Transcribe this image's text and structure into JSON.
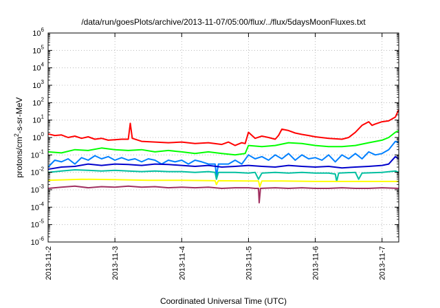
{
  "chart_data": {
    "type": "line",
    "title": "/data/run/goesPlots/archive/2013-11-07/05:00/flux/../flux/5daysMoonFluxes.txt",
    "xlabel": "Coordinated Universal Time (UTC)",
    "ylabel": {
      "prefix": "protons/cm",
      "sup": "2",
      "suffix": "-s-sr-MeV"
    },
    "yscale": "log",
    "ylim_exp": [
      -6,
      6
    ],
    "y_tick_labels": [
      {
        "base": "10",
        "exp": "-6"
      },
      {
        "base": "10",
        "exp": "-5"
      },
      {
        "base": "10",
        "exp": "-4"
      },
      {
        "base": "10",
        "exp": "-3"
      },
      {
        "base": "10",
        "exp": "-2"
      },
      {
        "base": "10",
        "exp": "-1"
      },
      {
        "base": "10",
        "exp": "0"
      },
      {
        "base": "10",
        "exp": "1"
      },
      {
        "base": "10",
        "exp": "2"
      },
      {
        "base": "10",
        "exp": "3"
      },
      {
        "base": "10",
        "exp": "4"
      },
      {
        "base": "10",
        "exp": "5"
      },
      {
        "base": "10",
        "exp": "6"
      }
    ],
    "xlim_days": [
      0,
      5.25
    ],
    "x_tick_labels": [
      "2013-11-2",
      "2013-11-3",
      "2013-11-4",
      "2013-11-5",
      "2013-11-6",
      "2013-11-7"
    ],
    "grid": true,
    "series": [
      {
        "color": "#ff0000",
        "points": [
          [
            0,
            1.6
          ],
          [
            0.1,
            1.3
          ],
          [
            0.2,
            1.4
          ],
          [
            0.3,
            1.0
          ],
          [
            0.4,
            1.2
          ],
          [
            0.5,
            0.9
          ],
          [
            0.6,
            1.1
          ],
          [
            0.7,
            0.8
          ],
          [
            0.8,
            0.9
          ],
          [
            0.9,
            0.7
          ],
          [
            1.0,
            0.75
          ],
          [
            1.1,
            0.8
          ],
          [
            1.2,
            0.8
          ],
          [
            1.23,
            6.5
          ],
          [
            1.26,
            0.9
          ],
          [
            1.4,
            0.6
          ],
          [
            1.6,
            0.55
          ],
          [
            1.8,
            0.5
          ],
          [
            2.0,
            0.55
          ],
          [
            2.2,
            0.45
          ],
          [
            2.4,
            0.5
          ],
          [
            2.6,
            0.4
          ],
          [
            2.7,
            0.55
          ],
          [
            2.8,
            0.35
          ],
          [
            2.9,
            0.5
          ],
          [
            2.95,
            0.45
          ],
          [
            3.0,
            2.0
          ],
          [
            3.1,
            0.9
          ],
          [
            3.2,
            1.2
          ],
          [
            3.3,
            1.0
          ],
          [
            3.4,
            0.8
          ],
          [
            3.45,
            1.3
          ],
          [
            3.5,
            3.0
          ],
          [
            3.6,
            2.5
          ],
          [
            3.7,
            1.8
          ],
          [
            3.8,
            1.5
          ],
          [
            3.9,
            1.3
          ],
          [
            4.0,
            1.1
          ],
          [
            4.2,
            0.9
          ],
          [
            4.4,
            0.8
          ],
          [
            4.5,
            1.0
          ],
          [
            4.6,
            2.0
          ],
          [
            4.7,
            5.0
          ],
          [
            4.8,
            8.0
          ],
          [
            4.85,
            5.0
          ],
          [
            4.9,
            6.0
          ],
          [
            5.0,
            8.0
          ],
          [
            5.1,
            9.0
          ],
          [
            5.2,
            15
          ],
          [
            5.25,
            40
          ]
        ]
      },
      {
        "color": "#00ff00",
        "points": [
          [
            0,
            0.15
          ],
          [
            0.2,
            0.13
          ],
          [
            0.4,
            0.2
          ],
          [
            0.6,
            0.18
          ],
          [
            0.8,
            0.25
          ],
          [
            1.0,
            0.2
          ],
          [
            1.2,
            0.18
          ],
          [
            1.4,
            0.2
          ],
          [
            1.6,
            0.15
          ],
          [
            1.8,
            0.18
          ],
          [
            2.0,
            0.15
          ],
          [
            2.2,
            0.12
          ],
          [
            2.4,
            0.15
          ],
          [
            2.6,
            0.12
          ],
          [
            2.8,
            0.1
          ],
          [
            2.95,
            0.12
          ],
          [
            3.0,
            0.35
          ],
          [
            3.2,
            0.3
          ],
          [
            3.4,
            0.35
          ],
          [
            3.6,
            0.5
          ],
          [
            3.8,
            0.45
          ],
          [
            4.0,
            0.35
          ],
          [
            4.2,
            0.3
          ],
          [
            4.4,
            0.3
          ],
          [
            4.6,
            0.35
          ],
          [
            4.8,
            0.5
          ],
          [
            5.0,
            0.7
          ],
          [
            5.1,
            1.0
          ],
          [
            5.2,
            2.0
          ],
          [
            5.25,
            2.5
          ]
        ]
      },
      {
        "color": "#0080ff",
        "points": [
          [
            0,
            0.02
          ],
          [
            0.1,
            0.05
          ],
          [
            0.2,
            0.04
          ],
          [
            0.3,
            0.06
          ],
          [
            0.4,
            0.03
          ],
          [
            0.5,
            0.07
          ],
          [
            0.6,
            0.05
          ],
          [
            0.7,
            0.09
          ],
          [
            0.8,
            0.06
          ],
          [
            0.9,
            0.08
          ],
          [
            1.0,
            0.05
          ],
          [
            1.1,
            0.07
          ],
          [
            1.2,
            0.05
          ],
          [
            1.3,
            0.06
          ],
          [
            1.4,
            0.04
          ],
          [
            1.5,
            0.06
          ],
          [
            1.6,
            0.05
          ],
          [
            1.7,
            0.03
          ],
          [
            1.8,
            0.05
          ],
          [
            1.9,
            0.04
          ],
          [
            2.0,
            0.05
          ],
          [
            2.1,
            0.03
          ],
          [
            2.2,
            0.05
          ],
          [
            2.3,
            0.04
          ],
          [
            2.4,
            0.03
          ],
          [
            2.5,
            0.03
          ],
          [
            2.52,
            0.006
          ],
          [
            2.55,
            0.03
          ],
          [
            2.7,
            0.03
          ],
          [
            2.8,
            0.05
          ],
          [
            2.9,
            0.03
          ],
          [
            3.0,
            0.1
          ],
          [
            3.1,
            0.06
          ],
          [
            3.2,
            0.08
          ],
          [
            3.3,
            0.05
          ],
          [
            3.4,
            0.1
          ],
          [
            3.5,
            0.06
          ],
          [
            3.6,
            0.12
          ],
          [
            3.7,
            0.05
          ],
          [
            3.8,
            0.1
          ],
          [
            3.9,
            0.06
          ],
          [
            4.0,
            0.07
          ],
          [
            4.1,
            0.05
          ],
          [
            4.2,
            0.1
          ],
          [
            4.3,
            0.04
          ],
          [
            4.4,
            0.1
          ],
          [
            4.5,
            0.06
          ],
          [
            4.6,
            0.12
          ],
          [
            4.7,
            0.06
          ],
          [
            4.8,
            0.15
          ],
          [
            4.9,
            0.1
          ],
          [
            5.0,
            0.12
          ],
          [
            5.1,
            0.2
          ],
          [
            5.2,
            0.6
          ],
          [
            5.25,
            0.5
          ]
        ]
      },
      {
        "color": "#0000cc",
        "points": [
          [
            0,
            0.015
          ],
          [
            0.2,
            0.02
          ],
          [
            0.4,
            0.022
          ],
          [
            0.6,
            0.03
          ],
          [
            0.8,
            0.025
          ],
          [
            1.0,
            0.03
          ],
          [
            1.2,
            0.028
          ],
          [
            1.4,
            0.025
          ],
          [
            1.6,
            0.03
          ],
          [
            1.8,
            0.028
          ],
          [
            2.0,
            0.025
          ],
          [
            2.2,
            0.022
          ],
          [
            2.4,
            0.025
          ],
          [
            2.6,
            0.02
          ],
          [
            2.8,
            0.022
          ],
          [
            3.0,
            0.025
          ],
          [
            3.2,
            0.022
          ],
          [
            3.4,
            0.02
          ],
          [
            3.6,
            0.025
          ],
          [
            3.8,
            0.022
          ],
          [
            4.0,
            0.02
          ],
          [
            4.2,
            0.022
          ],
          [
            4.4,
            0.018
          ],
          [
            4.6,
            0.02
          ],
          [
            4.8,
            0.022
          ],
          [
            5.0,
            0.025
          ],
          [
            5.1,
            0.03
          ],
          [
            5.2,
            0.08
          ],
          [
            5.25,
            0.06
          ]
        ]
      },
      {
        "color": "#00bfa0",
        "points": [
          [
            0,
            0.01
          ],
          [
            0.2,
            0.012
          ],
          [
            0.4,
            0.014
          ],
          [
            0.6,
            0.013
          ],
          [
            0.8,
            0.012
          ],
          [
            1.0,
            0.013
          ],
          [
            1.2,
            0.012
          ],
          [
            1.4,
            0.011
          ],
          [
            1.6,
            0.012
          ],
          [
            1.8,
            0.011
          ],
          [
            2.0,
            0.011
          ],
          [
            2.2,
            0.01
          ],
          [
            2.4,
            0.011
          ],
          [
            2.5,
            0.01
          ],
          [
            2.52,
            0.004
          ],
          [
            2.55,
            0.01
          ],
          [
            2.8,
            0.01
          ],
          [
            3.0,
            0.009
          ],
          [
            3.1,
            0.01
          ],
          [
            3.15,
            0.004
          ],
          [
            3.2,
            0.009
          ],
          [
            3.4,
            0.01
          ],
          [
            3.6,
            0.009
          ],
          [
            3.8,
            0.01
          ],
          [
            4.0,
            0.009
          ],
          [
            4.2,
            0.009
          ],
          [
            4.3,
            0.008
          ],
          [
            4.32,
            0.003
          ],
          [
            4.35,
            0.009
          ],
          [
            4.6,
            0.01
          ],
          [
            4.65,
            0.004
          ],
          [
            4.7,
            0.009
          ],
          [
            5.0,
            0.01
          ],
          [
            5.2,
            0.012
          ],
          [
            5.25,
            0.01
          ]
        ]
      },
      {
        "color": "#ffff00",
        "points": [
          [
            0,
            0.0035
          ],
          [
            0.5,
            0.004
          ],
          [
            1.0,
            0.0038
          ],
          [
            1.5,
            0.0035
          ],
          [
            2.0,
            0.0035
          ],
          [
            2.5,
            0.0033
          ],
          [
            2.52,
            0.002
          ],
          [
            2.55,
            0.0033
          ],
          [
            3.0,
            0.0032
          ],
          [
            3.15,
            0.0032
          ],
          [
            3.17,
            0.0015
          ],
          [
            3.2,
            0.0032
          ],
          [
            3.5,
            0.0032
          ],
          [
            4.0,
            0.003
          ],
          [
            4.5,
            0.003
          ],
          [
            5.0,
            0.003
          ],
          [
            5.25,
            0.003
          ]
        ]
      },
      {
        "color": "#a03060",
        "points": [
          [
            0,
            0.0012
          ],
          [
            0.2,
            0.0014
          ],
          [
            0.4,
            0.0016
          ],
          [
            0.6,
            0.0013
          ],
          [
            0.8,
            0.0015
          ],
          [
            1.0,
            0.0014
          ],
          [
            1.2,
            0.0016
          ],
          [
            1.4,
            0.0014
          ],
          [
            1.6,
            0.0015
          ],
          [
            1.8,
            0.0013
          ],
          [
            2.0,
            0.0014
          ],
          [
            2.2,
            0.0013
          ],
          [
            2.4,
            0.0014
          ],
          [
            2.6,
            0.0012
          ],
          [
            2.8,
            0.0013
          ],
          [
            3.0,
            0.0013
          ],
          [
            3.1,
            0.0012
          ],
          [
            3.15,
            0.0012
          ],
          [
            3.16,
            0.00018
          ],
          [
            3.18,
            0.0012
          ],
          [
            3.4,
            0.0013
          ],
          [
            3.6,
            0.0012
          ],
          [
            3.8,
            0.0013
          ],
          [
            4.0,
            0.0012
          ],
          [
            4.2,
            0.0012
          ],
          [
            4.4,
            0.0013
          ],
          [
            4.6,
            0.0012
          ],
          [
            4.8,
            0.0012
          ],
          [
            5.0,
            0.0013
          ],
          [
            5.25,
            0.0012
          ]
        ]
      }
    ]
  }
}
